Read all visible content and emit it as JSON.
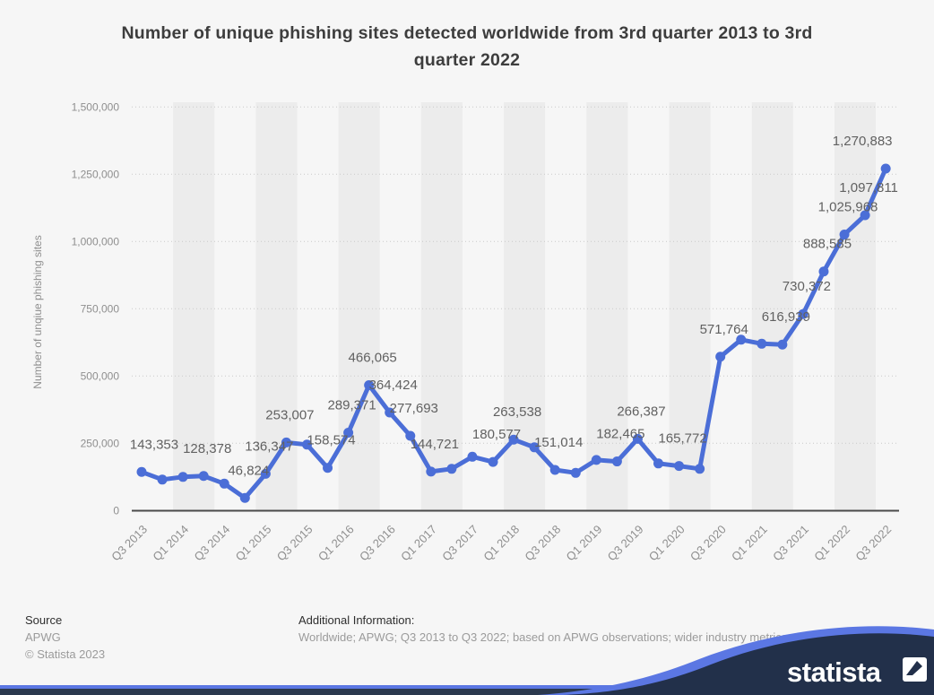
{
  "page_title": "Number of unique phishing sites detected worldwide from 3rd quarter 2013 to 3rd quarter 2022",
  "footer": {
    "source_label": "Source",
    "source_name": "APWG",
    "copyright": "© Statista 2023",
    "additional_info_label": "Additional Information:",
    "additional_info": "Worldwide; APWG; Q3 2013 to Q3 2022; based on APWG observations; wider industry metrics"
  },
  "branding": {
    "logo_text": "statista",
    "navy": "#22304a",
    "blue": "#5b77e3"
  },
  "chart_data": {
    "type": "line",
    "title": "Number of unique phishing sites detected worldwide from 3rd quarter 2013 to 3rd quarter 2022",
    "xlabel": "",
    "ylabel": "Number of unqiue phishing sites",
    "ylim": [
      0,
      1500000
    ],
    "yticks": [
      0,
      250000,
      500000,
      750000,
      1000000,
      1250000,
      1500000
    ],
    "ytick_labels": [
      "0",
      "250,000",
      "500,000",
      "750,000",
      "1,000,000",
      "1,250,000",
      "1,500,000"
    ],
    "x_tick_labels_shown": [
      "Q3 2013",
      "Q1 2014",
      "Q3 2014",
      "Q1 2015",
      "Q3 2015",
      "Q1 2016",
      "Q3 2016",
      "Q1 2017",
      "Q3 2017",
      "Q1 2018",
      "Q3 2018",
      "Q1 2019",
      "Q3 2019",
      "Q1 2020",
      "Q3 2020",
      "Q1 2021",
      "Q3 2021",
      "Q1 2022",
      "Q3 2022"
    ],
    "grid": "horizontal-dotted",
    "legend": "none",
    "line_color": "#4b6ed7",
    "label_color": "#616161",
    "axis_text_color": "#8f8f8f",
    "points": [
      {
        "x": "Q3 2013",
        "value": 143353,
        "label": "143,353"
      },
      {
        "x": "Q4 2013",
        "value": 115000,
        "label": "",
        "estimated": true
      },
      {
        "x": "Q1 2014",
        "value": 125000,
        "label": "",
        "estimated": true
      },
      {
        "x": "Q2 2014",
        "value": 128378,
        "label": "128,378"
      },
      {
        "x": "Q3 2014",
        "value": 100000,
        "label": "",
        "estimated": true
      },
      {
        "x": "Q4 2014",
        "value": 46824,
        "label": "46,824"
      },
      {
        "x": "Q1 2015",
        "value": 136347,
        "label": "136,347"
      },
      {
        "x": "Q2 2015",
        "value": 253007,
        "label": "253,007"
      },
      {
        "x": "Q3 2015",
        "value": 245000,
        "label": "",
        "estimated": true
      },
      {
        "x": "Q4 2015",
        "value": 158574,
        "label": "158,574"
      },
      {
        "x": "Q1 2016",
        "value": 289371,
        "label": "289,371"
      },
      {
        "x": "Q2 2016",
        "value": 466065,
        "label": "466,065"
      },
      {
        "x": "Q3 2016",
        "value": 364424,
        "label": "364,424"
      },
      {
        "x": "Q4 2016",
        "value": 277693,
        "label": "277,693"
      },
      {
        "x": "Q1 2017",
        "value": 144721,
        "label": "144,721"
      },
      {
        "x": "Q2 2017",
        "value": 155000,
        "label": "",
        "estimated": true
      },
      {
        "x": "Q3 2017",
        "value": 200000,
        "label": "",
        "estimated": true
      },
      {
        "x": "Q4 2017",
        "value": 180577,
        "label": "180,577"
      },
      {
        "x": "Q1 2018",
        "value": 263538,
        "label": "263,538"
      },
      {
        "x": "Q2 2018",
        "value": 235000,
        "label": "",
        "estimated": true
      },
      {
        "x": "Q3 2018",
        "value": 151014,
        "label": "151,014"
      },
      {
        "x": "Q4 2018",
        "value": 140000,
        "label": "",
        "estimated": true
      },
      {
        "x": "Q1 2019",
        "value": 188000,
        "label": "",
        "estimated": true
      },
      {
        "x": "Q2 2019",
        "value": 182465,
        "label": "182,465"
      },
      {
        "x": "Q3 2019",
        "value": 266387,
        "label": "266,387"
      },
      {
        "x": "Q4 2019",
        "value": 175000,
        "label": "",
        "estimated": true
      },
      {
        "x": "Q1 2020",
        "value": 165772,
        "label": "165,772"
      },
      {
        "x": "Q2 2020",
        "value": 155000,
        "label": "",
        "estimated": true
      },
      {
        "x": "Q3 2020",
        "value": 571764,
        "label": "571,764"
      },
      {
        "x": "Q4 2020",
        "value": 635000,
        "label": "",
        "estimated": true
      },
      {
        "x": "Q1 2021",
        "value": 620000,
        "label": "",
        "estimated": true
      },
      {
        "x": "Q2 2021",
        "value": 616939,
        "label": "616,939"
      },
      {
        "x": "Q3 2021",
        "value": 730372,
        "label": "730,372"
      },
      {
        "x": "Q4 2021",
        "value": 888585,
        "label": "888,585"
      },
      {
        "x": "Q1 2022",
        "value": 1025968,
        "label": "1,025,968"
      },
      {
        "x": "Q2 2022",
        "value": 1097811,
        "label": "1,097,811"
      },
      {
        "x": "Q3 2022",
        "value": 1270883,
        "label": "1,270,883"
      }
    ]
  }
}
